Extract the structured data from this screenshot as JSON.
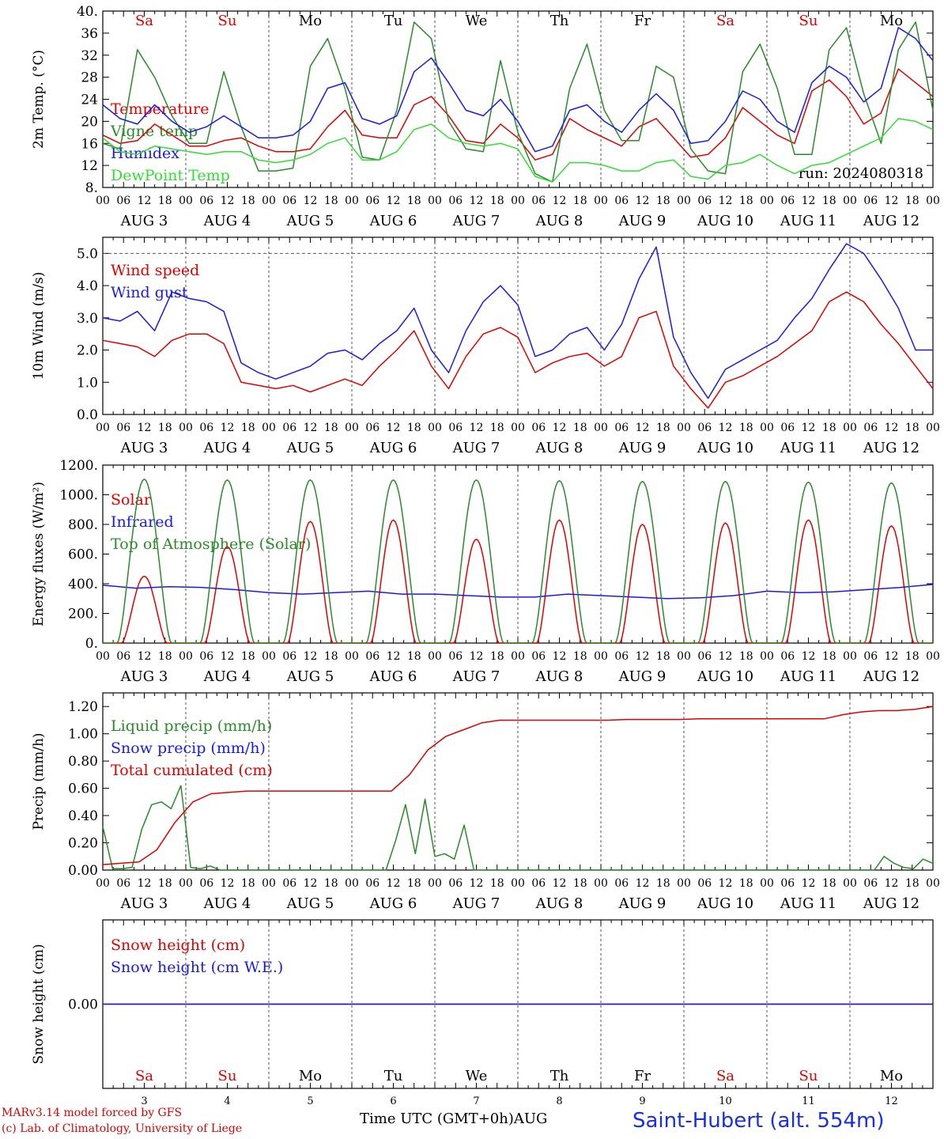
{
  "footer": {
    "model_line": "MARv3.14 model forced by GFS",
    "copyright_line": "(c) Lab. of Climatology, University of Liege",
    "time_axis_label": "Time UTC (GMT+0h)",
    "month_label": "AUG",
    "station": "Saint-Hubert (alt. 554m)"
  },
  "colors": {
    "weekend": "#e00000",
    "weekday": "#000000",
    "grid": "#555555"
  },
  "chart_data": [
    {
      "type": "line",
      "ylabel": "2m Temp. (°C)",
      "ylim": [
        8,
        40
      ],
      "yticks": [
        "8.",
        "12",
        "16",
        "20",
        "24",
        "28",
        "32",
        "36",
        "40."
      ],
      "run_label": "run: 2024080318",
      "day_labels": [
        "Sa",
        "Su",
        "Mo",
        "Tu",
        "We",
        "Th",
        "Fr",
        "Sa",
        "Su",
        "Mo"
      ],
      "hour_ticks": [
        "00",
        "06",
        "12",
        "18"
      ],
      "date_labels": [
        "AUG 3",
        "AUG 4",
        "AUG 5",
        "AUG 6",
        "AUG 7",
        "AUG 8",
        "AUG 9",
        "AUG 10",
        "AUG 11",
        "AUG 12"
      ],
      "series": [
        {
          "name": "Temperature",
          "color": "#e00000",
          "values": [
            17.5,
            16,
            16.5,
            19.5,
            17.5,
            15.5,
            15.5,
            16.5,
            17,
            15.5,
            14.5,
            14.5,
            15,
            19,
            22,
            17.5,
            17,
            17,
            23,
            24.5,
            21,
            16.5,
            16,
            19.5,
            17,
            13,
            14,
            20.5,
            18.5,
            17,
            15.5,
            19,
            20.5,
            17,
            13.5,
            14,
            17,
            22.5,
            20,
            17.5,
            16,
            25.5,
            27.5,
            24.5,
            19.5,
            21.5,
            29.5,
            27,
            24.5
          ]
        },
        {
          "name": "Vigne temp",
          "color": "#2a8a2a",
          "values": [
            16,
            15,
            33,
            28,
            21,
            16,
            16,
            29,
            19,
            11,
            11,
            11.5,
            30,
            35,
            26,
            13.5,
            13,
            22,
            38,
            35,
            20,
            15,
            14.5,
            31,
            18,
            10.5,
            9,
            26,
            34,
            22,
            16.5,
            16.5,
            30,
            28,
            15,
            11,
            10.5,
            29,
            34,
            26,
            14,
            14,
            33,
            37,
            25,
            16,
            33,
            38,
            22
          ]
        },
        {
          "name": "Humidex",
          "color": "#1a1ae6",
          "values": [
            23,
            20.5,
            19.5,
            23,
            20,
            18,
            19,
            21,
            19,
            17,
            17,
            17.5,
            20,
            26,
            27,
            20.5,
            19.5,
            21,
            29,
            31.5,
            27,
            22,
            21,
            24,
            20,
            14.5,
            15.5,
            22,
            23,
            20,
            18,
            22,
            25,
            22,
            16,
            16.5,
            20,
            25.5,
            24,
            20,
            18,
            27,
            30,
            28,
            23.5,
            26,
            37,
            35,
            31
          ]
        },
        {
          "name": "DewPoint Temp",
          "color": "#33dd33",
          "values": [
            17,
            14.5,
            14,
            15.5,
            15,
            14.5,
            14,
            14.5,
            14.5,
            13,
            12.5,
            13,
            14,
            16,
            17,
            13,
            13,
            14.5,
            18.5,
            19.5,
            17,
            16,
            15.5,
            16,
            15,
            10,
            9,
            12.5,
            12.5,
            12,
            11,
            11,
            12.5,
            13,
            10,
            9.5,
            12,
            12.5,
            14,
            12,
            10.5,
            12,
            12.5,
            14,
            15.5,
            17,
            20.5,
            20,
            18.5
          ]
        }
      ]
    },
    {
      "type": "line",
      "ylabel": "10m Wind (m/s)",
      "ylim": [
        0,
        5.5
      ],
      "yticks": [
        "0.0",
        "1.0",
        "2.0",
        "3.0",
        "4.0",
        "5.0"
      ],
      "day_labels": [],
      "hour_ticks": [
        "00",
        "06",
        "12",
        "18"
      ],
      "date_labels": [
        "AUG 3",
        "AUG 4",
        "AUG 5",
        "AUG 6",
        "AUG 7",
        "AUG 8",
        "AUG 9",
        "AUG 10",
        "AUG 11",
        "AUG 12"
      ],
      "series": [
        {
          "name": "Wind speed",
          "color": "#e00000",
          "values": [
            2.3,
            2.2,
            2.1,
            1.8,
            2.3,
            2.5,
            2.5,
            2.2,
            1.0,
            0.9,
            0.8,
            0.9,
            0.7,
            0.9,
            1.1,
            0.9,
            1.5,
            2.0,
            2.6,
            1.5,
            0.8,
            1.8,
            2.5,
            2.7,
            2.4,
            1.3,
            1.6,
            1.8,
            1.9,
            1.5,
            1.8,
            3.0,
            3.2,
            1.5,
            0.8,
            0.2,
            1.0,
            1.2,
            1.5,
            1.8,
            2.2,
            2.6,
            3.5,
            3.8,
            3.5,
            2.8,
            2.2,
            1.5,
            0.8
          ]
        },
        {
          "name": "Wind gust",
          "color": "#1a1ae6",
          "values": [
            3.0,
            2.9,
            3.2,
            2.6,
            3.8,
            3.6,
            3.5,
            3.2,
            1.6,
            1.3,
            1.1,
            1.3,
            1.5,
            1.9,
            2.0,
            1.7,
            2.2,
            2.6,
            3.3,
            2.0,
            1.3,
            2.6,
            3.5,
            4.0,
            3.4,
            1.8,
            2.0,
            2.5,
            2.7,
            2.0,
            2.8,
            4.2,
            5.2,
            2.4,
            1.3,
            0.5,
            1.4,
            1.7,
            2.0,
            2.3,
            3.0,
            3.6,
            4.5,
            5.3,
            5.0,
            4.2,
            3.3,
            2.0,
            2.0
          ]
        }
      ]
    },
    {
      "type": "line",
      "ylabel": "Energy fluxes (W/m²)",
      "ylim": [
        0,
        1200
      ],
      "yticks": [
        "0.",
        "200.",
        "400.",
        "600.",
        "800.",
        "1000.",
        "1200."
      ],
      "day_labels": [],
      "hour_ticks": [
        "00",
        "06",
        "12",
        "18"
      ],
      "date_labels": [
        "AUG 3",
        "AUG 4",
        "AUG 5",
        "AUG 6",
        "AUG 7",
        "AUG 8",
        "AUG 9",
        "AUG 10",
        "AUG 11",
        "AUG 12"
      ],
      "series": [
        {
          "name": "Solar",
          "color": "#e00000",
          "peaks": [
            450,
            650,
            820,
            830,
            700,
            830,
            800,
            810,
            830,
            790
          ]
        },
        {
          "name": "Infrared",
          "color": "#1a1ae6",
          "values": [
            390,
            370,
            380,
            375,
            360,
            340,
            330,
            340,
            350,
            330,
            330,
            320,
            310,
            310,
            330,
            320,
            310,
            300,
            305,
            320,
            350,
            340,
            345,
            360,
            375,
            395
          ]
        },
        {
          "name": "Top of Atmosphere (Solar)",
          "color": "#2a8a2a",
          "peaks": [
            1105,
            1100,
            1100,
            1100,
            1100,
            1095,
            1090,
            1090,
            1085,
            1080
          ]
        }
      ]
    },
    {
      "type": "line",
      "ylabel": "Precip (mm/h)",
      "ylim": [
        0,
        1.3
      ],
      "yticks": [
        "0.00",
        "0.20",
        "0.40",
        "0.60",
        "0.80",
        "1.00",
        "1.20"
      ],
      "day_labels": [],
      "hour_ticks": [
        "00",
        "06",
        "12",
        "18"
      ],
      "date_labels": [
        "AUG 3",
        "AUG 4",
        "AUG 5",
        "AUG 6",
        "AUG 7",
        "AUG 8",
        "AUG 9",
        "AUG 10",
        "AUG 11",
        "AUG 12"
      ],
      "series": [
        {
          "name": "Liquid precip (mm/h)",
          "color": "#2a8a2a",
          "values": [
            0.32,
            0.01,
            0.01,
            0.02,
            0.3,
            0.48,
            0.5,
            0.45,
            0.62,
            0.02,
            0.01,
            0.03,
            0,
            0,
            0,
            0,
            0,
            0,
            0,
            0,
            0,
            0,
            0,
            0,
            0,
            0,
            0,
            0,
            0,
            0,
            0.22,
            0.48,
            0.12,
            0.52,
            0.1,
            0.12,
            0.08,
            0.33,
            0,
            0,
            0,
            0,
            0,
            0,
            0,
            0,
            0,
            0,
            0,
            0,
            0,
            0,
            0,
            0,
            0,
            0,
            0,
            0,
            0,
            0,
            0,
            0,
            0,
            0,
            0,
            0,
            0,
            0,
            0,
            0,
            0,
            0,
            0,
            0,
            0,
            0,
            0,
            0,
            0,
            0,
            0.1,
            0.05,
            0.02,
            0.01,
            0.08,
            0.05
          ]
        },
        {
          "name": "Snow precip (mm/h)",
          "color": "#1a1ae6",
          "values": []
        },
        {
          "name": "Total cumulated (cm)",
          "color": "#e00000",
          "values": [
            0.04,
            0.05,
            0.06,
            0.15,
            0.35,
            0.5,
            0.56,
            0.57,
            0.58,
            0.58,
            0.58,
            0.58,
            0.58,
            0.58,
            0.58,
            0.58,
            0.58,
            0.7,
            0.88,
            0.98,
            1.03,
            1.08,
            1.1,
            1.1,
            1.1,
            1.1,
            1.1,
            1.1,
            1.1,
            1.105,
            1.105,
            1.105,
            1.105,
            1.11,
            1.11,
            1.11,
            1.11,
            1.11,
            1.11,
            1.11,
            1.11,
            1.14,
            1.16,
            1.17,
            1.17,
            1.18,
            1.2
          ]
        }
      ]
    },
    {
      "type": "line",
      "ylabel": "Snow height (cm)",
      "ylim": [
        -1,
        1
      ],
      "yticks": [
        "0.00"
      ],
      "day_labels": [
        "Sa",
        "Su",
        "Mo",
        "Tu",
        "We",
        "Th",
        "Fr",
        "Sa",
        "Su",
        "Mo"
      ],
      "date_numbers": [
        "3",
        "4",
        "5",
        "6",
        "7",
        "8",
        "9",
        "10",
        "11",
        "12"
      ],
      "series": [
        {
          "name": "Snow height (cm)",
          "color": "#e00000",
          "values": [
            0,
            0
          ]
        },
        {
          "name": "Snow height (cm W.E.)",
          "color": "#1a1ae6",
          "values": [
            0,
            0
          ]
        }
      ]
    }
  ]
}
